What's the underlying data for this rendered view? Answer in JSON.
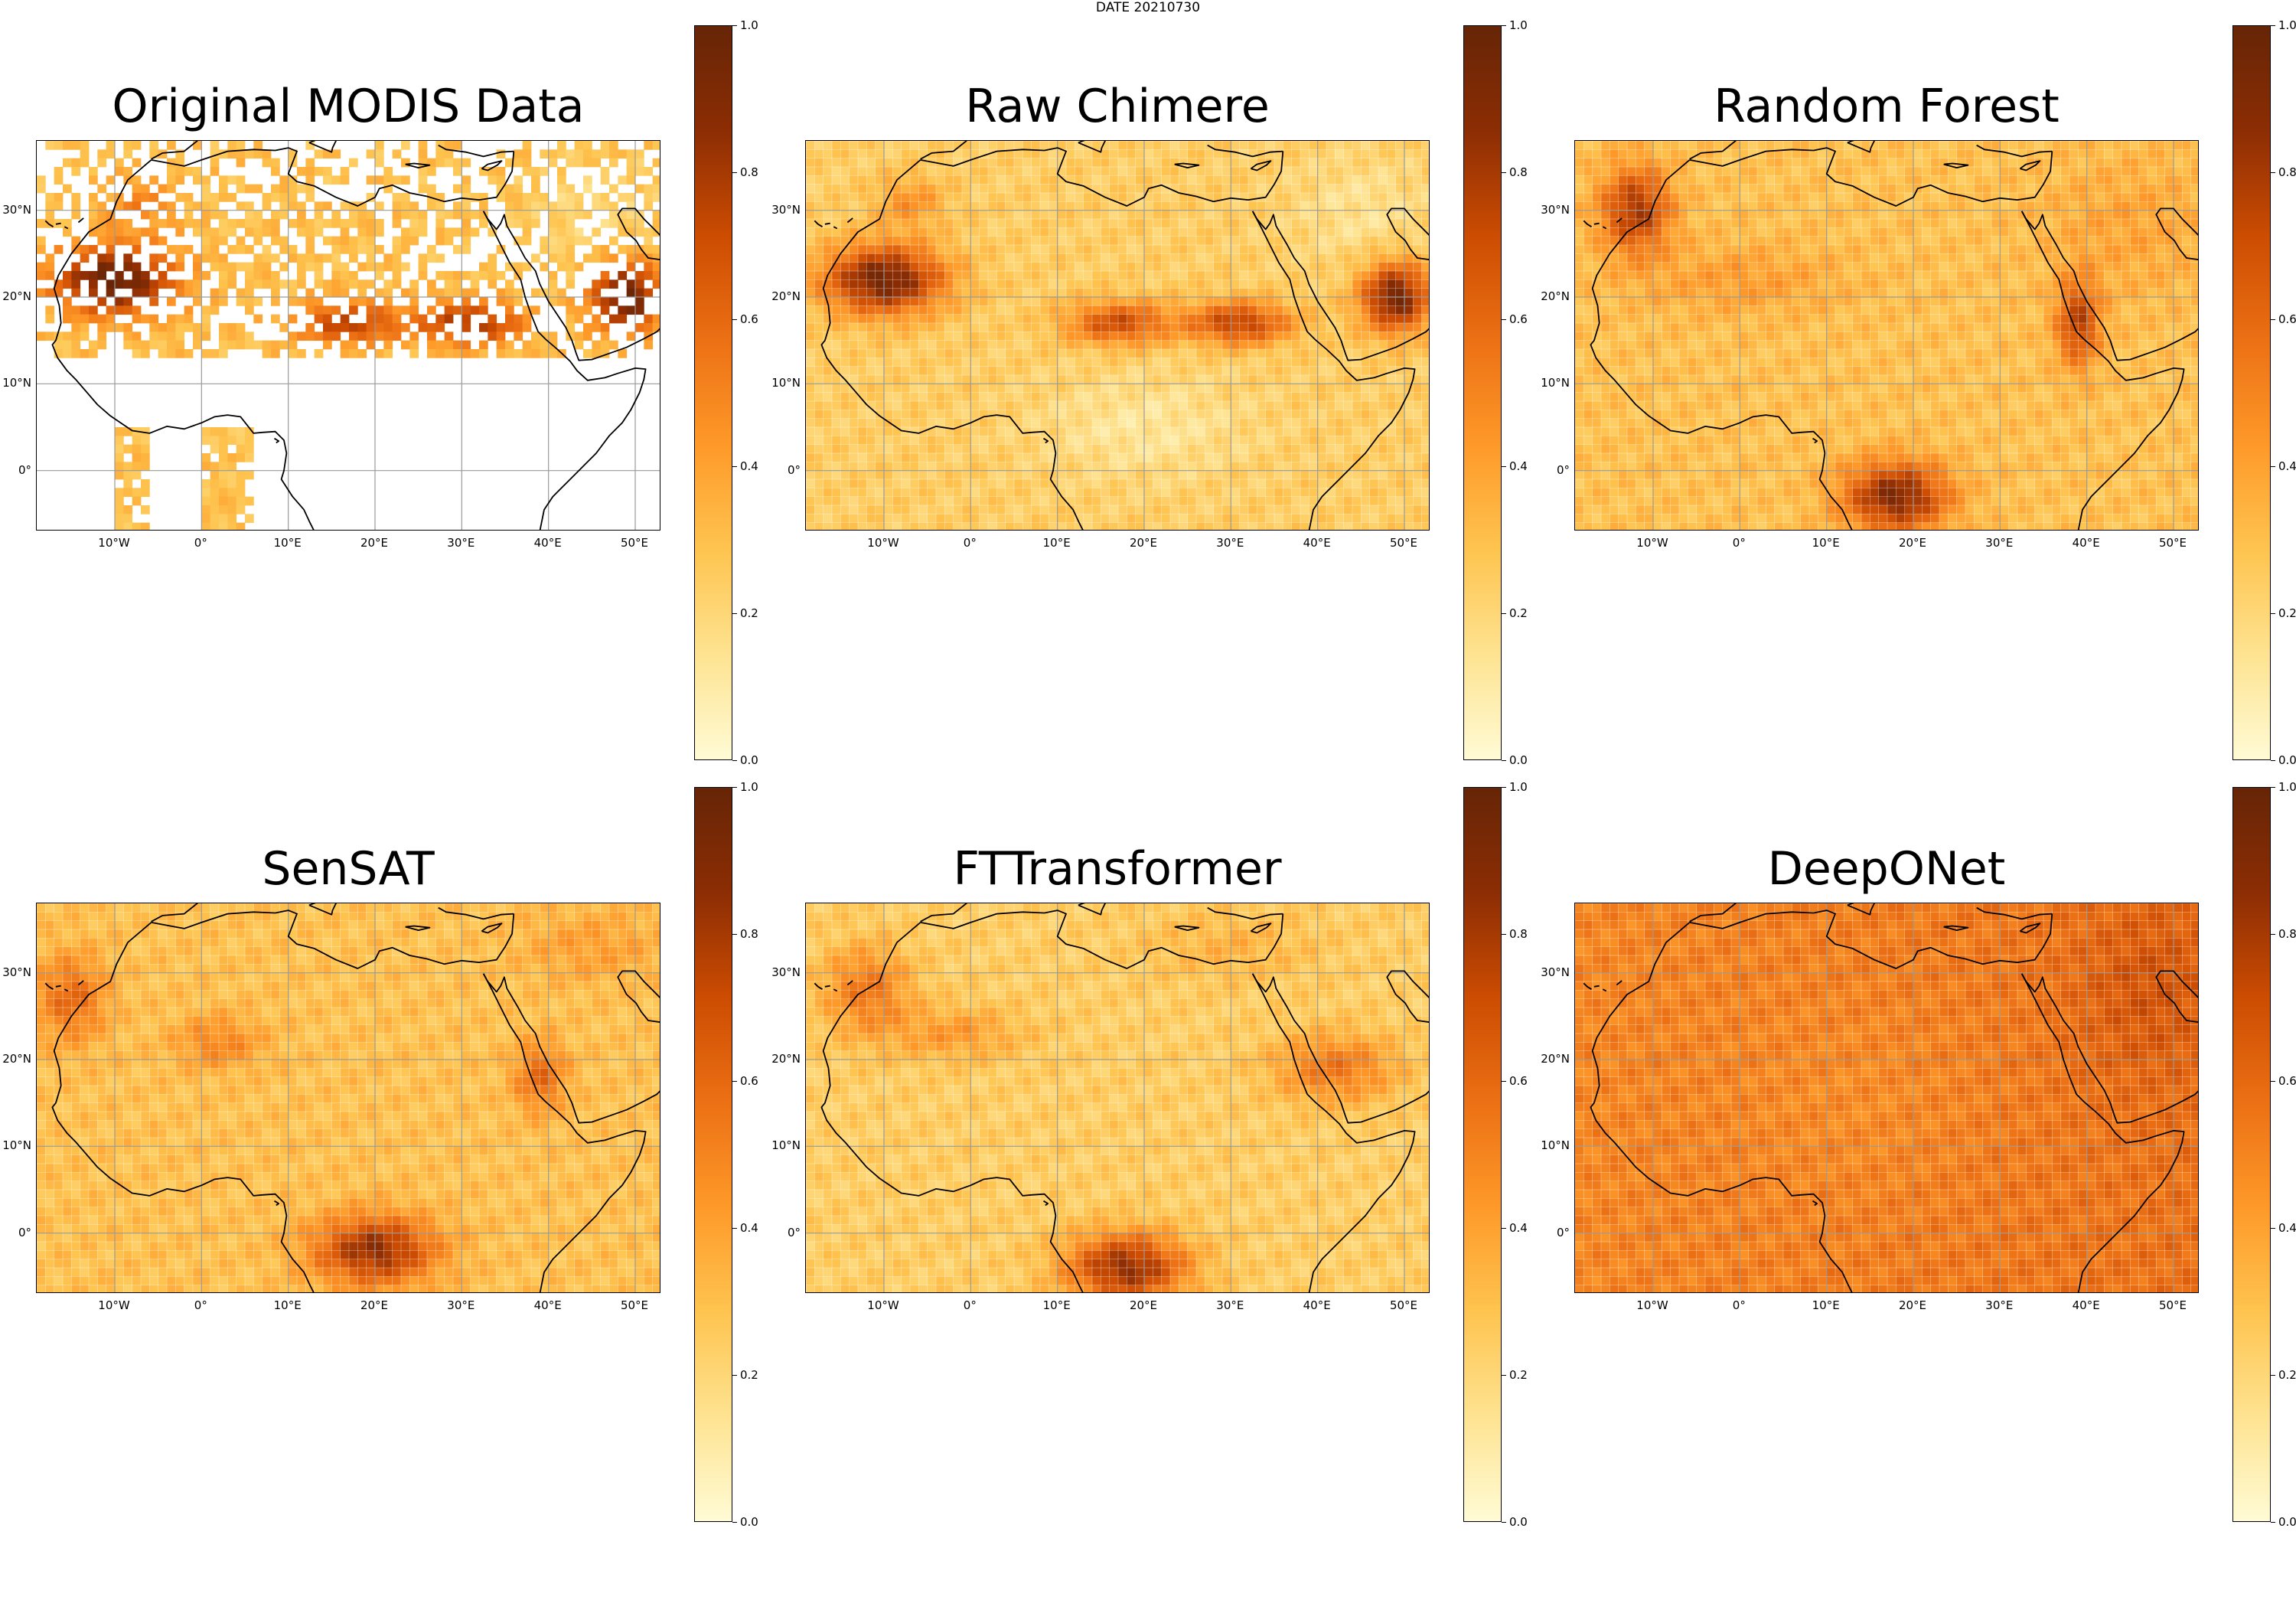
{
  "figure": {
    "suptitle": "DATE 20210730",
    "colormap_colors": [
      "#fffbd5",
      "#fee391",
      "#fec44f",
      "#fe9929",
      "#ec7014",
      "#cc4c02",
      "#8c2d04",
      "#662506"
    ],
    "lon_range": [
      -19,
      53
    ],
    "lat_range": [
      -7,
      38
    ],
    "lon_ticks": [
      "10°W",
      "0°",
      "10°E",
      "20°E",
      "30°E",
      "40°E",
      "50°E"
    ],
    "lat_ticks": [
      "30°N",
      "20°N",
      "10°N",
      "0°"
    ],
    "colorbar": {
      "min": 0.0,
      "max": 1.0,
      "ticks": [
        "0.0",
        "0.2",
        "0.4",
        "0.6",
        "0.8",
        "1.0"
      ]
    }
  },
  "panels": [
    {
      "title": "Original MODIS Data",
      "style": "sparse",
      "base_level": 0.3
    },
    {
      "title": "Raw Chimere",
      "style": "chimere",
      "base_level": 0.25
    },
    {
      "title": "Random Forest",
      "style": "forest",
      "base_level": 0.3
    },
    {
      "title": "SenSAT",
      "style": "sensat",
      "base_level": 0.3
    },
    {
      "title": "FTTransformer",
      "style": "ftt",
      "base_level": 0.25
    },
    {
      "title": "DeepONet",
      "style": "deeponet",
      "base_level": 0.5
    }
  ]
}
